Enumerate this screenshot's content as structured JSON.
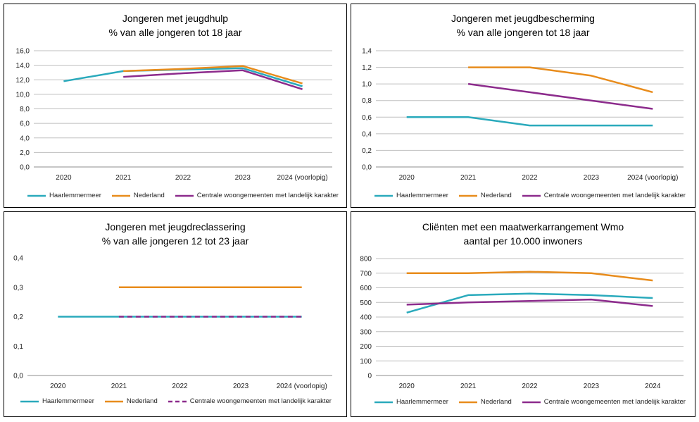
{
  "colors": {
    "haarlemmermeer": "#2aaabc",
    "nederland": "#e88c1c",
    "centrale": "#8c2b8c",
    "grid": "#bfbfbf",
    "axis": "#8c8c8c"
  },
  "chart_data": [
    {
      "type": "line",
      "title": "Jongeren met jeugdhulp",
      "subtitle": "% van alle jongeren tot 18 jaar",
      "categories": [
        "2020",
        "2021",
        "2022",
        "2023",
        "2024 (voorlopig)"
      ],
      "yticks": [
        "16,0",
        "14,0",
        "12,0",
        "10,0",
        "8,0",
        "6,0",
        "4,0",
        "2,0",
        "0,0"
      ],
      "ylim": [
        0,
        16
      ],
      "grid": true,
      "legend_position": "bottom",
      "series": [
        {
          "name": "Haarlemmermeer",
          "values": [
            11.8,
            13.2,
            13.4,
            13.6,
            11.1
          ]
        },
        {
          "name": "Nederland",
          "values": [
            null,
            13.2,
            13.5,
            13.9,
            11.5
          ]
        },
        {
          "name": "Centrale woongemeenten met landelijk karakter",
          "values": [
            null,
            12.4,
            12.9,
            13.3,
            10.7
          ]
        }
      ]
    },
    {
      "type": "line",
      "title": "Jongeren met jeugdbescherming",
      "subtitle": "% van alle jongeren tot 18 jaar",
      "categories": [
        "2020",
        "2021",
        "2022",
        "2023",
        "2024 (voorlopig)"
      ],
      "yticks": [
        "1,4",
        "1,2",
        "1,0",
        "0,8",
        "0,6",
        "0,4",
        "0,2",
        "0,0"
      ],
      "ylim": [
        0,
        1.4
      ],
      "grid": true,
      "legend_position": "bottom",
      "series": [
        {
          "name": "Haarlemmermeer",
          "values": [
            0.6,
            0.6,
            0.5,
            0.5,
            0.5
          ]
        },
        {
          "name": "Nederland",
          "values": [
            null,
            1.2,
            1.2,
            1.1,
            0.9
          ]
        },
        {
          "name": "Centrale woongemeenten met landelijk karakter",
          "values": [
            null,
            1.0,
            0.9,
            0.8,
            0.7
          ]
        }
      ]
    },
    {
      "type": "line",
      "title": "Jongeren met jeugdreclassering",
      "subtitle": "% van alle jongeren 12 tot 23 jaar",
      "categories": [
        "2020",
        "2021",
        "2022",
        "2023",
        "2024 (voorlopig)"
      ],
      "yticks": [
        "0,4",
        "0,3",
        "0,2",
        "0,1",
        "0,0"
      ],
      "ylim": [
        0,
        0.4
      ],
      "grid": false,
      "legend_position": "bottom",
      "series": [
        {
          "name": "Haarlemmermeer",
          "values": [
            0.2,
            0.2,
            0.2,
            0.2,
            0.2
          ]
        },
        {
          "name": "Nederland",
          "values": [
            null,
            0.3,
            0.3,
            0.3,
            0.3
          ]
        },
        {
          "name": "Centrale woongemeenten met landelijk karakter",
          "values": [
            null,
            0.2,
            0.2,
            0.2,
            0.2
          ],
          "dashed": true
        }
      ]
    },
    {
      "type": "line",
      "title": "Cliënten met een maatwerkarrangement Wmo",
      "subtitle": "aantal per 10.000 inwoners",
      "categories": [
        "2020",
        "2021",
        "2022",
        "2023",
        "2024"
      ],
      "yticks": [
        "800",
        "700",
        "600",
        "500",
        "400",
        "300",
        "200",
        "100",
        "0"
      ],
      "ylim": [
        0,
        800
      ],
      "grid": true,
      "legend_position": "bottom",
      "series": [
        {
          "name": "Haarlemmermeer",
          "values": [
            430,
            550,
            560,
            550,
            530
          ]
        },
        {
          "name": "Nederland",
          "values": [
            700,
            700,
            710,
            700,
            650
          ]
        },
        {
          "name": "Centrale woongemeenten met landelijk karakter",
          "values": [
            485,
            500,
            510,
            520,
            475
          ]
        }
      ]
    }
  ]
}
